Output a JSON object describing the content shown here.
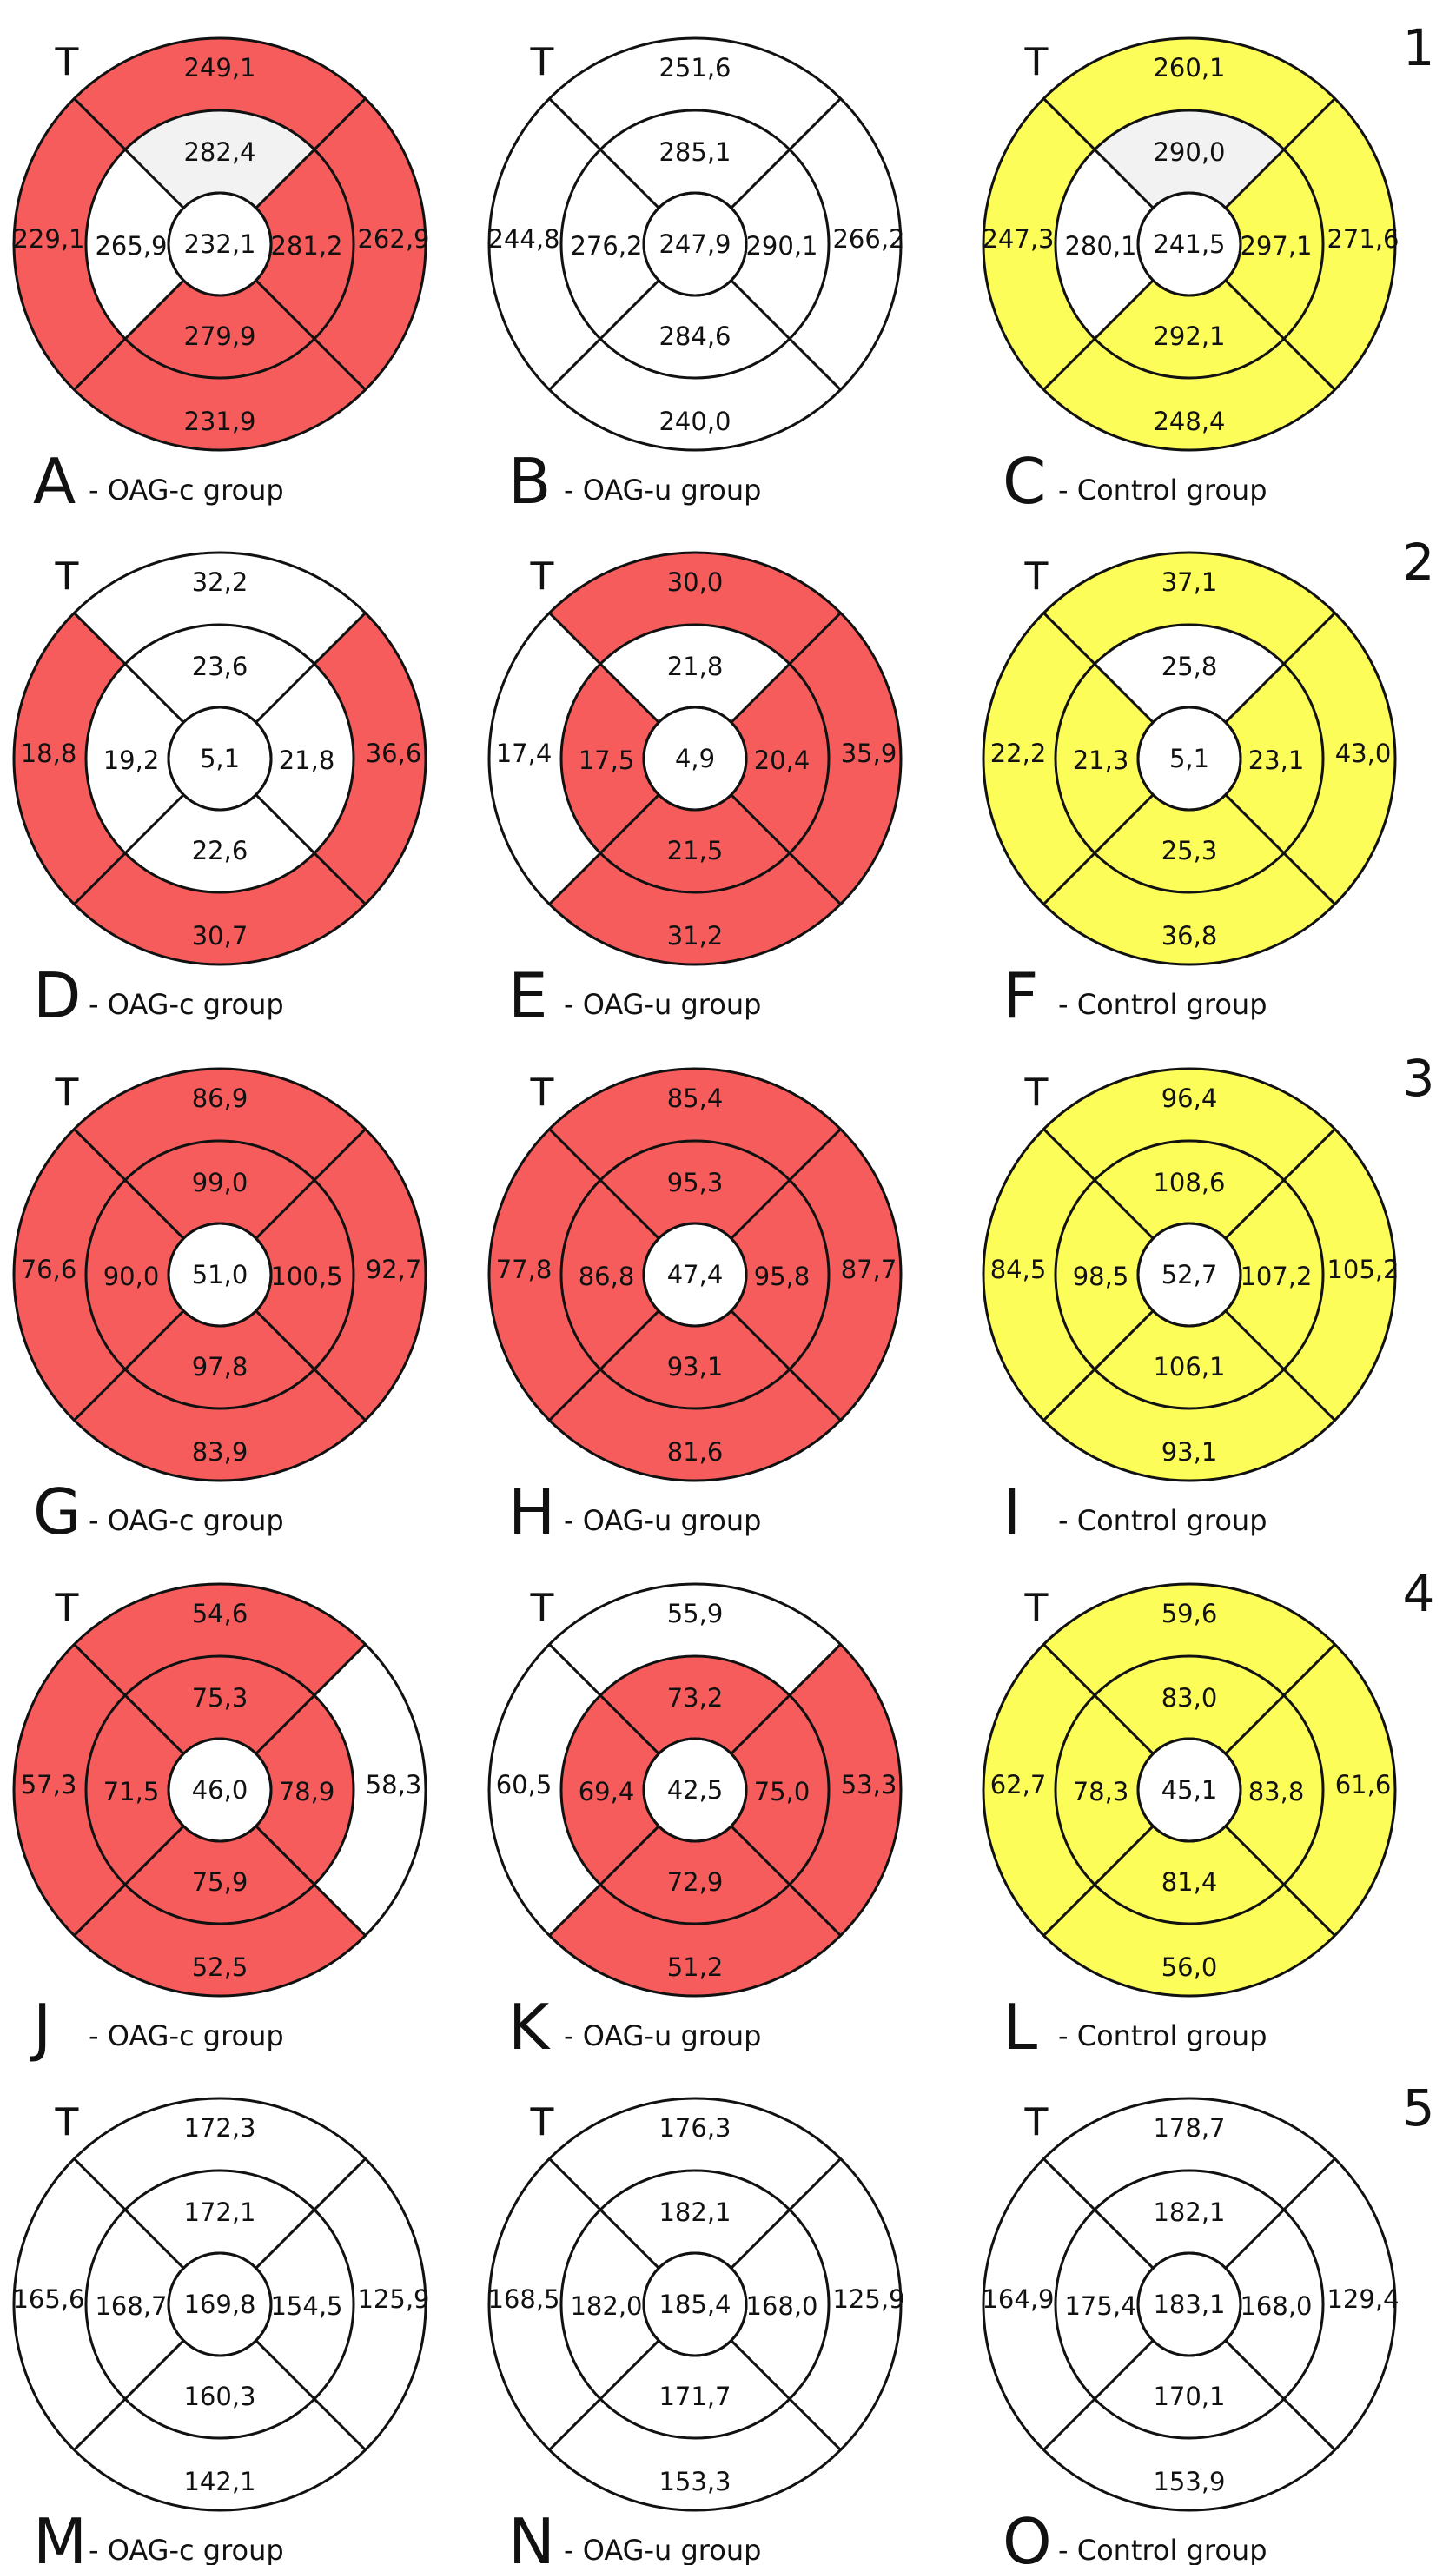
{
  "colors": {
    "red": "#f75c5c",
    "yellow": "#fdfd5a",
    "grey": "#f2f2f2",
    "white": "#ffffff"
  },
  "side_label": "T",
  "rows": [
    {
      "number": "1",
      "panels": [
        {
          "letter": "A",
          "group": "- OAG-c group",
          "values": {
            "center": "232,1",
            "inner_sup": "282,4",
            "inner_temp": "265,9",
            "inner_nasal": "281,2",
            "inner_inf": "279,9",
            "outer_sup": "249,1",
            "outer_temp": "229,1",
            "outer_nasal": "262,9",
            "outer_inf": "231,9"
          },
          "fills": {
            "inner_sup": "grey",
            "inner_temp": "white",
            "inner_nasal": "red",
            "inner_inf": "red",
            "outer_sup": "red",
            "outer_temp": "red",
            "outer_nasal": "red",
            "outer_inf": "red"
          }
        },
        {
          "letter": "B",
          "group": "- OAG-u group",
          "values": {
            "center": "247,9",
            "inner_sup": "285,1",
            "inner_temp": "276,2",
            "inner_nasal": "290,1",
            "inner_inf": "284,6",
            "outer_sup": "251,6",
            "outer_temp": "244,8",
            "outer_nasal": "266,2",
            "outer_inf": "240,0"
          },
          "fills": {
            "inner_sup": "white",
            "inner_temp": "white",
            "inner_nasal": "white",
            "inner_inf": "white",
            "outer_sup": "white",
            "outer_temp": "white",
            "outer_nasal": "white",
            "outer_inf": "white"
          }
        },
        {
          "letter": "C",
          "group": "- Control group",
          "values": {
            "center": "241,5",
            "inner_sup": "290,0",
            "inner_temp": "280,1",
            "inner_nasal": "297,1",
            "inner_inf": "292,1",
            "outer_sup": "260,1",
            "outer_temp": "247,3",
            "outer_nasal": "271,6",
            "outer_inf": "248,4"
          },
          "fills": {
            "inner_sup": "grey",
            "inner_temp": "white",
            "inner_nasal": "yellow",
            "inner_inf": "yellow",
            "outer_sup": "yellow",
            "outer_temp": "yellow",
            "outer_nasal": "yellow",
            "outer_inf": "yellow"
          }
        }
      ]
    },
    {
      "number": "2",
      "panels": [
        {
          "letter": "D",
          "group": "- OAG-c group",
          "values": {
            "center": "5,1",
            "inner_sup": "23,6",
            "inner_temp": "19,2",
            "inner_nasal": "21,8",
            "inner_inf": "22,6",
            "outer_sup": "32,2",
            "outer_temp": "18,8",
            "outer_nasal": "36,6",
            "outer_inf": "30,7"
          },
          "fills": {
            "inner_sup": "white",
            "inner_temp": "white",
            "inner_nasal": "white",
            "inner_inf": "white",
            "outer_sup": "white",
            "outer_temp": "red",
            "outer_nasal": "red",
            "outer_inf": "red"
          }
        },
        {
          "letter": "E",
          "group": "- OAG-u group",
          "values": {
            "center": "4,9",
            "inner_sup": "21,8",
            "inner_temp": "17,5",
            "inner_nasal": "20,4",
            "inner_inf": "21,5",
            "outer_sup": "30,0",
            "outer_temp": "17,4",
            "outer_nasal": "35,9",
            "outer_inf": "31,2"
          },
          "fills": {
            "inner_sup": "white",
            "inner_temp": "red",
            "inner_nasal": "red",
            "inner_inf": "red",
            "outer_sup": "red",
            "outer_temp": "white",
            "outer_nasal": "red",
            "outer_inf": "red"
          }
        },
        {
          "letter": "F",
          "group": "- Control group",
          "values": {
            "center": "5,1",
            "inner_sup": "25,8",
            "inner_temp": "21,3",
            "inner_nasal": "23,1",
            "inner_inf": "25,3",
            "outer_sup": "37,1",
            "outer_temp": "22,2",
            "outer_nasal": "43,0",
            "outer_inf": "36,8"
          },
          "fills": {
            "inner_sup": "white",
            "inner_temp": "yellow",
            "inner_nasal": "yellow",
            "inner_inf": "yellow",
            "outer_sup": "yellow",
            "outer_temp": "yellow",
            "outer_nasal": "yellow",
            "outer_inf": "yellow"
          }
        }
      ]
    },
    {
      "number": "3",
      "panels": [
        {
          "letter": "G",
          "group": "- OAG-c group",
          "values": {
            "center": "51,0",
            "inner_sup": "99,0",
            "inner_temp": "90,0",
            "inner_nasal": "100,5",
            "inner_inf": "97,8",
            "outer_sup": "86,9",
            "outer_temp": "76,6",
            "outer_nasal": "92,7",
            "outer_inf": "83,9"
          },
          "fills": {
            "inner_sup": "red",
            "inner_temp": "red",
            "inner_nasal": "red",
            "inner_inf": "red",
            "outer_sup": "red",
            "outer_temp": "red",
            "outer_nasal": "red",
            "outer_inf": "red"
          }
        },
        {
          "letter": "H",
          "group": "- OAG-u group",
          "values": {
            "center": "47,4",
            "inner_sup": "95,3",
            "inner_temp": "86,8",
            "inner_nasal": "95,8",
            "inner_inf": "93,1",
            "outer_sup": "85,4",
            "outer_temp": "77,8",
            "outer_nasal": "87,7",
            "outer_inf": "81,6"
          },
          "fills": {
            "inner_sup": "red",
            "inner_temp": "red",
            "inner_nasal": "red",
            "inner_inf": "red",
            "outer_sup": "red",
            "outer_temp": "red",
            "outer_nasal": "red",
            "outer_inf": "red"
          }
        },
        {
          "letter": "I",
          "group": "- Control group",
          "values": {
            "center": "52,7",
            "inner_sup": "108,6",
            "inner_temp": "98,5",
            "inner_nasal": "107,2",
            "inner_inf": "106,1",
            "outer_sup": "96,4",
            "outer_temp": "84,5",
            "outer_nasal": "105,2",
            "outer_inf": "93,1"
          },
          "fills": {
            "inner_sup": "yellow",
            "inner_temp": "yellow",
            "inner_nasal": "yellow",
            "inner_inf": "yellow",
            "outer_sup": "yellow",
            "outer_temp": "yellow",
            "outer_nasal": "yellow",
            "outer_inf": "yellow"
          }
        }
      ]
    },
    {
      "number": "4",
      "panels": [
        {
          "letter": "J",
          "group": "- OAG-c group",
          "values": {
            "center": "46,0",
            "inner_sup": "75,3",
            "inner_temp": "71,5",
            "inner_nasal": "78,9",
            "inner_inf": "75,9",
            "outer_sup": "54,6",
            "outer_temp": "57,3",
            "outer_nasal": "58,3",
            "outer_inf": "52,5"
          },
          "fills": {
            "inner_sup": "red",
            "inner_temp": "red",
            "inner_nasal": "red",
            "inner_inf": "red",
            "outer_sup": "red",
            "outer_temp": "red",
            "outer_nasal": "white",
            "outer_inf": "red"
          }
        },
        {
          "letter": "K",
          "group": "- OAG-u group",
          "values": {
            "center": "42,5",
            "inner_sup": "73,2",
            "inner_temp": "69,4",
            "inner_nasal": "75,0",
            "inner_inf": "72,9",
            "outer_sup": "55,9",
            "outer_temp": "60,5",
            "outer_nasal": "53,3",
            "outer_inf": "51,2"
          },
          "fills": {
            "inner_sup": "red",
            "inner_temp": "red",
            "inner_nasal": "red",
            "inner_inf": "red",
            "outer_sup": "white",
            "outer_temp": "white",
            "outer_nasal": "red",
            "outer_inf": "red"
          }
        },
        {
          "letter": "L",
          "group": "- Control group",
          "values": {
            "center": "45,1",
            "inner_sup": "83,0",
            "inner_temp": "78,3",
            "inner_nasal": "83,8",
            "inner_inf": "81,4",
            "outer_sup": "59,6",
            "outer_temp": "62,7",
            "outer_nasal": "61,6",
            "outer_inf": "56,0"
          },
          "fills": {
            "inner_sup": "yellow",
            "inner_temp": "yellow",
            "inner_nasal": "yellow",
            "inner_inf": "yellow",
            "outer_sup": "yellow",
            "outer_temp": "yellow",
            "outer_nasal": "yellow",
            "outer_inf": "yellow"
          }
        }
      ]
    },
    {
      "number": "5",
      "panels": [
        {
          "letter": "M",
          "group": "- OAG-c group",
          "values": {
            "center": "169,8",
            "inner_sup": "172,1",
            "inner_temp": "168,7",
            "inner_nasal": "154,5",
            "inner_inf": "160,3",
            "outer_sup": "172,3",
            "outer_temp": "165,6",
            "outer_nasal": "125,9",
            "outer_inf": "142,1"
          },
          "fills": {
            "inner_sup": "white",
            "inner_temp": "white",
            "inner_nasal": "white",
            "inner_inf": "white",
            "outer_sup": "white",
            "outer_temp": "white",
            "outer_nasal": "white",
            "outer_inf": "white"
          }
        },
        {
          "letter": "N",
          "group": "- OAG-u group",
          "values": {
            "center": "185,4",
            "inner_sup": "182,1",
            "inner_temp": "182,0",
            "inner_nasal": "168,0",
            "inner_inf": "171,7",
            "outer_sup": "176,3",
            "outer_temp": "168,5",
            "outer_nasal": "125,9",
            "outer_inf": "153,3"
          },
          "fills": {
            "inner_sup": "white",
            "inner_temp": "white",
            "inner_nasal": "white",
            "inner_inf": "white",
            "outer_sup": "white",
            "outer_temp": "white",
            "outer_nasal": "white",
            "outer_inf": "white"
          }
        },
        {
          "letter": "O",
          "group": "- Control group",
          "values": {
            "center": "183,1",
            "inner_sup": "182,1",
            "inner_temp": "175,4",
            "inner_nasal": "168,0",
            "inner_inf": "170,1",
            "outer_sup": "178,7",
            "outer_temp": "164,9",
            "outer_nasal": "129,4",
            "outer_inf": "153,9"
          },
          "fills": {
            "inner_sup": "white",
            "inner_temp": "white",
            "inner_nasal": "white",
            "inner_inf": "white",
            "outer_sup": "white",
            "outer_temp": "white",
            "outer_nasal": "white",
            "outer_inf": "white"
          }
        }
      ]
    }
  ]
}
